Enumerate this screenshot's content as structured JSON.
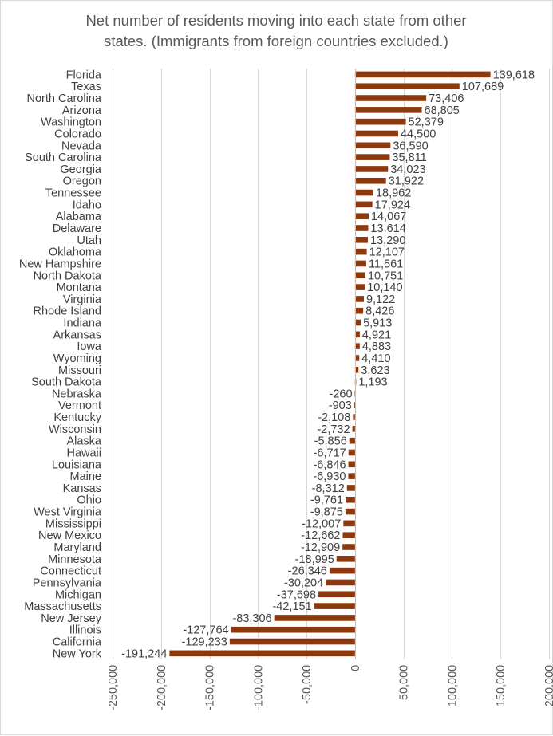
{
  "chart_data": {
    "type": "bar",
    "orientation": "horizontal",
    "title": "Net number of residents moving into each state from other states. (Immigrants from foreign countries excluded.)",
    "title_lines": [
      "Net number of residents moving into each state from other",
      "states. (Immigrants from foreign countries excluded.)"
    ],
    "xlim": [
      -250000,
      200000
    ],
    "xticks": [
      -250000,
      -200000,
      -150000,
      -100000,
      -50000,
      0,
      50000,
      100000,
      150000,
      200000
    ],
    "xtick_labels": [
      "-250,000",
      "-200,000",
      "-150,000",
      "-100,000",
      "-50,000",
      "0",
      "50,000",
      "100,000",
      "150,000",
      "200,000"
    ],
    "grid": "vertical",
    "bar_color": "#8B3A0F",
    "categories": [
      "Florida",
      "Texas",
      "North Carolina",
      "Arizona",
      "Washington",
      "Colorado",
      "Nevada",
      "South Carolina",
      "Georgia",
      "Oregon",
      "Tennessee",
      "Idaho",
      "Alabama",
      "Delaware",
      "Utah",
      "Oklahoma",
      "New Hampshire",
      "North Dakota",
      "Montana",
      "Virginia",
      "Rhode Island",
      "Indiana",
      "Arkansas",
      "Iowa",
      "Wyoming",
      "Missouri",
      "South Dakota",
      "Nebraska",
      "Vermont",
      "Kentucky",
      "Wisconsin",
      "Alaska",
      "Hawaii",
      "Louisiana",
      "Maine",
      "Kansas",
      "Ohio",
      "West Virginia",
      "Mississippi",
      "New Mexico",
      "Maryland",
      "Minnesota",
      "Connecticut",
      "Pennsylvania",
      "Michigan",
      "Massachusetts",
      "New Jersey",
      "Illinois",
      "California",
      "New York"
    ],
    "values": [
      139618,
      107689,
      73406,
      68805,
      52379,
      44500,
      36590,
      35811,
      34023,
      31922,
      18962,
      17924,
      14067,
      13614,
      13290,
      12107,
      11561,
      10751,
      10140,
      9122,
      8426,
      5913,
      4921,
      4883,
      4410,
      3623,
      1193,
      -260,
      -903,
      -2108,
      -2732,
      -5856,
      -6717,
      -6846,
      -6930,
      -8312,
      -9761,
      -9875,
      -12007,
      -12662,
      -12909,
      -18995,
      -26346,
      -30204,
      -37698,
      -42151,
      -83306,
      -127764,
      -129233,
      -191244
    ],
    "data_labels": [
      "139,618",
      "107,689",
      "73,406",
      "68,805",
      "52,379",
      "44,500",
      "36,590",
      "35,811",
      "34,023",
      "31,922",
      "18,962",
      "17,924",
      "14,067",
      "13,614",
      "13,290",
      "12,107",
      "11,561",
      "10,751",
      "10,140",
      "9,122",
      "8,426",
      "5,913",
      "4,921",
      "4,883",
      "4,410",
      "3,623",
      "1,193",
      "-260",
      "-903",
      "-2,108",
      "-2,732",
      "-5,856",
      "-6,717",
      "-6,846",
      "-6,930",
      "-8,312",
      "-9,761",
      "-9,875",
      "-12,007",
      "-12,662",
      "-12,909",
      "-18,995",
      "-26,346",
      "-30,204",
      "-37,698",
      "-42,151",
      "-83,306",
      "-127,764",
      "-129,233",
      "-191,244"
    ]
  }
}
